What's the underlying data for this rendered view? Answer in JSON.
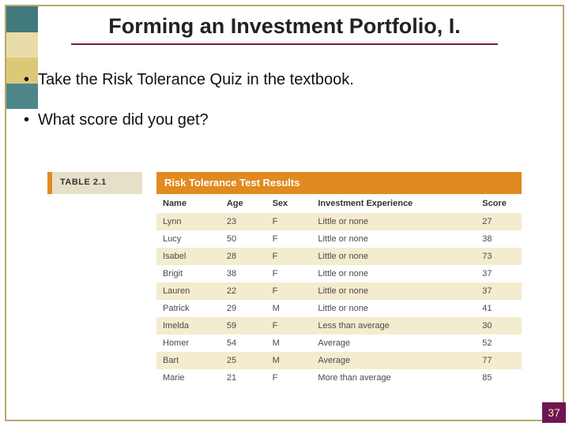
{
  "title": "Forming an Investment Portfolio, I.",
  "bullets": [
    "Take the Risk Tolerance Quiz in the textbook.",
    "What score did you get?"
  ],
  "page_number": "37",
  "decor_colors": [
    "#2e6b6e",
    "#e7d9a0",
    "#d9c46a",
    "#3a7a7d"
  ],
  "table": {
    "badge": "TABLE 2.1",
    "caption": "Risk Tolerance Test Results",
    "badge_bg": "#e7e0c9",
    "caption_bg": "#e18a1f",
    "caption_text_color": "#ffffff",
    "row_alt_bg": "#f4eccf",
    "columns": [
      "Name",
      "Age",
      "Sex",
      "Investment Experience",
      "Score"
    ],
    "rows": [
      [
        "Lynn",
        "23",
        "F",
        "Little or none",
        "27"
      ],
      [
        "Lucy",
        "50",
        "F",
        "Little or none",
        "38"
      ],
      [
        "Isabel",
        "28",
        "F",
        "Little or none",
        "73"
      ],
      [
        "Brigit",
        "38",
        "F",
        "Little or none",
        "37"
      ],
      [
        "Lauren",
        "22",
        "F",
        "Little or none",
        "37"
      ],
      [
        "Patrick",
        "29",
        "M",
        "Little or none",
        "41"
      ],
      [
        "Imelda",
        "59",
        "F",
        "Less than average",
        "30"
      ],
      [
        "Homer",
        "54",
        "M",
        "Average",
        "52"
      ],
      [
        "Bart",
        "25",
        "M",
        "Average",
        "77"
      ],
      [
        "Marie",
        "21",
        "F",
        "More than average",
        "85"
      ]
    ]
  },
  "colors": {
    "frame_border": "#b8a86e",
    "title_underline": "#7a1a4a",
    "pagenum_bg": "#6e1651",
    "pagenum_text": "#f2e9b8"
  }
}
